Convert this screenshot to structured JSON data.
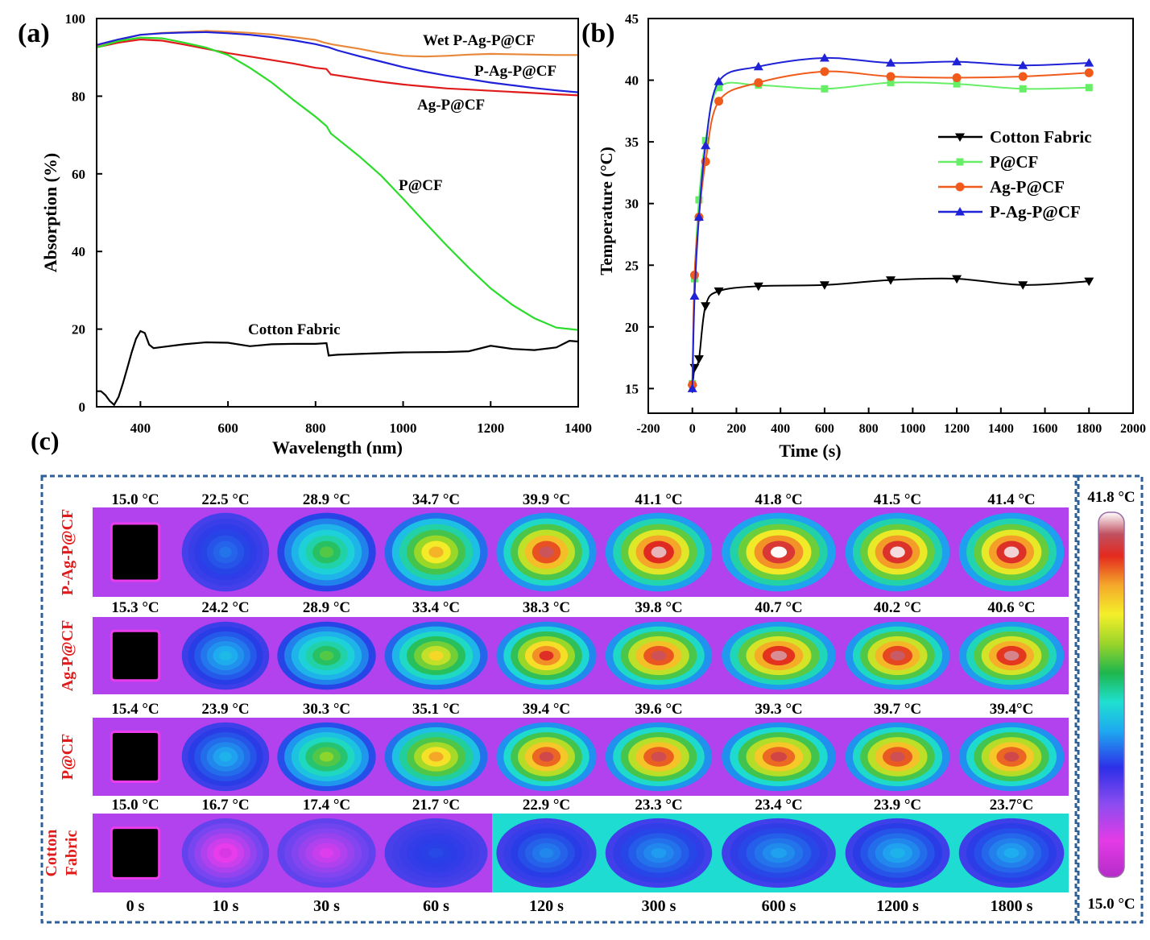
{
  "panels": {
    "a": {
      "label": "(a)",
      "chart_data": {
        "type": "line",
        "xlabel": "Wavelength (nm)",
        "ylabel": "Absorption (%)",
        "xlim": [
          300,
          1400
        ],
        "ylim": [
          0,
          100
        ],
        "xticks": [
          400,
          600,
          800,
          1000,
          1200,
          1400
        ],
        "yticks": [
          0,
          20,
          40,
          60,
          80,
          100
        ],
        "grid": false,
        "series": [
          {
            "name": "Wet P-Ag-P@CF",
            "color": "#e8883a",
            "x": [
              300,
              350,
              400,
              450,
              500,
              550,
              600,
              650,
              700,
              750,
              800,
              820,
              840,
              900,
              950,
              1000,
              1050,
              1100,
              1150,
              1200,
              1250,
              1300,
              1350,
              1400
            ],
            "y": [
              93,
              94.5,
              95.8,
              96.3,
              96.5,
              96.8,
              96.6,
              96.3,
              95.9,
              95.2,
              94.5,
              93.8,
              93.3,
              92.2,
              91.1,
              90.4,
              90.2,
              90.4,
              90.7,
              90.9,
              90.8,
              90.7,
              90.6,
              90.6
            ]
          },
          {
            "name": "P-Ag-P@CF",
            "color": "#1f22d6",
            "x": [
              300,
              350,
              400,
              450,
              500,
              550,
              600,
              650,
              700,
              750,
              800,
              830,
              850,
              900,
              950,
              1000,
              1050,
              1100,
              1150,
              1200,
              1250,
              1300,
              1350,
              1400
            ],
            "y": [
              93.2,
              94.6,
              95.8,
              96.2,
              96.4,
              96.5,
              96.2,
              95.8,
              95.2,
              94.4,
              93.4,
              92.6,
              91.8,
              90.3,
              88.9,
              87.5,
              86.3,
              85.3,
              84.4,
              83.5,
              82.8,
              82.1,
              81.5,
              81
            ]
          },
          {
            "name": "Ag-P@CF",
            "color": "#e01b1b",
            "x": [
              300,
              350,
              400,
              450,
              500,
              550,
              600,
              650,
              700,
              750,
              800,
              825,
              835,
              900,
              950,
              1000,
              1050,
              1100,
              1150,
              1200,
              1250,
              1300,
              1350,
              1400
            ],
            "y": [
              92.6,
              93.8,
              94.6,
              94.3,
              93.3,
              92.2,
              91.1,
              90.2,
              89.3,
              88.4,
              87.3,
              87,
              85.6,
              84.5,
              83.7,
              83,
              82.5,
              82,
              81.7,
              81.4,
              81.1,
              80.8,
              80.5,
              80.2
            ]
          },
          {
            "name": "P@CF",
            "color": "#2bdc2b",
            "x": [
              300,
              350,
              400,
              450,
              500,
              550,
              600,
              650,
              700,
              750,
              800,
              825,
              835,
              900,
              950,
              1000,
              1050,
              1100,
              1150,
              1200,
              1250,
              1300,
              1350,
              1400
            ],
            "y": [
              92.5,
              94.2,
              95.1,
              94.9,
              93.8,
              92.5,
              90.6,
              87.3,
              83.5,
              79,
              74.7,
              72.3,
              70.4,
              64.5,
              59.5,
              53.6,
              47.5,
              41.5,
              35.8,
              30.5,
              26.2,
              22.8,
              20.4,
              19.8
            ]
          },
          {
            "name": "Cotton Fabric",
            "color": "#000000",
            "x": [
              300,
              310,
              320,
              330,
              340,
              350,
              360,
              370,
              380,
              390,
              400,
              410,
              420,
              430,
              450,
              500,
              550,
              600,
              650,
              700,
              750,
              800,
              825,
              830,
              850,
              900,
              1000,
              1100,
              1150,
              1200,
              1250,
              1300,
              1350,
              1380,
              1400
            ],
            "y": [
              4,
              4,
              3,
              1.5,
              0.5,
              2.5,
              6,
              10,
              14,
              17.5,
              19.5,
              19,
              16,
              15.1,
              15.4,
              16.1,
              16.6,
              16.5,
              15.6,
              16.1,
              16.2,
              16.2,
              16.4,
              13.2,
              13.4,
              13.6,
              14,
              14.1,
              14.3,
              15.7,
              14.9,
              14.6,
              15.3,
              17,
              16.8
            ]
          }
        ],
        "annotations": [
          {
            "text": "Wet P-Ag-P@CF",
            "series": 0
          },
          {
            "text": "P-Ag-P@CF",
            "series": 1
          },
          {
            "text": "Ag-P@CF",
            "series": 2
          },
          {
            "text": "P@CF",
            "series": 3
          },
          {
            "text": "Cotton Fabric",
            "series": 4
          }
        ]
      }
    },
    "b": {
      "label": "(b)",
      "chart_data": {
        "type": "line",
        "xlabel": "Time (s)",
        "ylabel": "Temperature (°C)",
        "xlim": [
          -200,
          2000
        ],
        "ylim": [
          13,
          45
        ],
        "xticks": [
          -200,
          0,
          200,
          400,
          600,
          800,
          1000,
          1200,
          1400,
          1600,
          1800,
          2000
        ],
        "yticks": [
          15,
          20,
          25,
          30,
          35,
          40,
          45
        ],
        "grid": false,
        "legend_position": "right",
        "x": [
          0,
          10,
          30,
          60,
          120,
          300,
          600,
          900,
          1200,
          1500,
          1800
        ],
        "series": [
          {
            "name": "Cotton Fabric",
            "color": "#000000",
            "marker": "triangle-down",
            "values": [
              15.0,
              16.7,
              17.4,
              21.7,
              22.9,
              23.3,
              23.4,
              23.8,
              23.9,
              23.4,
              23.7
            ]
          },
          {
            "name": "P@CF",
            "color": "#66ee66",
            "marker": "square",
            "values": [
              15.4,
              23.9,
              30.3,
              35.1,
              39.4,
              39.6,
              39.3,
              39.8,
              39.7,
              39.3,
              39.4
            ]
          },
          {
            "name": "Ag-P@CF",
            "color": "#f05a1a",
            "marker": "circle",
            "values": [
              15.3,
              24.2,
              28.9,
              33.4,
              38.3,
              39.8,
              40.7,
              40.3,
              40.2,
              40.3,
              40.6
            ]
          },
          {
            "name": "P-Ag-P@CF",
            "color": "#1f22d6",
            "marker": "triangle-up",
            "values": [
              15.0,
              22.5,
              28.9,
              34.7,
              39.9,
              41.1,
              41.8,
              41.4,
              41.5,
              41.2,
              41.4
            ]
          }
        ]
      }
    },
    "c": {
      "label": "(c)",
      "scale": {
        "max": "41.8 °C",
        "min": "15.0 °C",
        "max_value": 41.8,
        "min_value": 15.0
      },
      "time_labels": [
        "0 s",
        "10 s",
        "30 s",
        "60 s",
        "120 s",
        "300 s",
        "600 s",
        "1200 s",
        "1800 s"
      ],
      "rows": [
        {
          "name": "P-Ag-P@CF",
          "lines": [
            "P-Ag-P@CF"
          ],
          "label_color": "#e01b1b",
          "temps": [
            "15.0 °C",
            "22.5 °C",
            "28.9 °C",
            "34.7 °C",
            "39.9 °C",
            "41.1 °C",
            "41.8 °C",
            "41.5 °C",
            "41.4 °C"
          ],
          "values": [
            15.0,
            22.5,
            28.9,
            34.7,
            39.9,
            41.1,
            41.8,
            41.5,
            41.4
          ]
        },
        {
          "name": "Ag-P@CF",
          "lines": [
            "Ag-P@CF"
          ],
          "label_color": "#e01b1b",
          "temps": [
            "15.3 °C",
            "24.2 °C",
            "28.9 °C",
            "33.4 °C",
            "38.3 °C",
            "39.8 °C",
            "40.7 °C",
            "40.2 °C",
            "40.6 °C"
          ],
          "values": [
            15.3,
            24.2,
            28.9,
            33.4,
            38.3,
            39.8,
            40.7,
            40.2,
            40.6
          ]
        },
        {
          "name": "P@CF",
          "lines": [
            "P@CF"
          ],
          "label_color": "#e01b1b",
          "temps": [
            "15.4 °C",
            "23.9 °C",
            "30.3 °C",
            "35.1 °C",
            "39.4 °C",
            "39.6 °C",
            "39.3 °C",
            "39.7 °C",
            "39.4°C"
          ],
          "values": [
            15.4,
            23.9,
            30.3,
            35.1,
            39.4,
            39.6,
            39.3,
            39.7,
            39.4
          ]
        },
        {
          "name": "Cotton Fabric",
          "lines": [
            "Cotton",
            "Fabric"
          ],
          "label_color": "#e01b1b",
          "temps": [
            "15.0 °C",
            "16.7 °C",
            "17.4 °C",
            "21.7 °C",
            "22.9 °C",
            "23.3 °C",
            "23.4 °C",
            "23.9 °C",
            "23.7°C"
          ],
          "values": [
            15.0,
            16.7,
            17.4,
            21.7,
            22.9,
            23.3,
            23.4,
            23.9,
            23.7
          ]
        }
      ]
    }
  }
}
